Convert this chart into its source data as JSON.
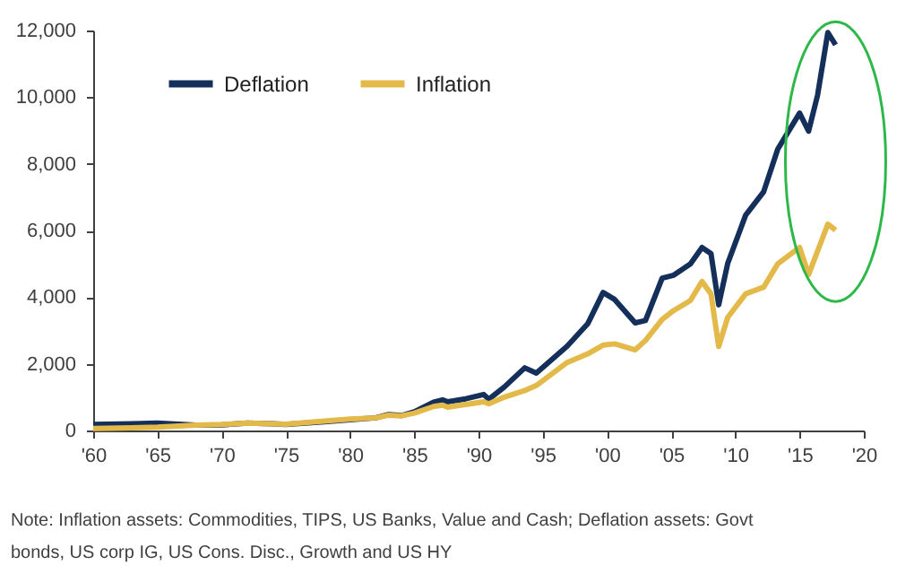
{
  "chart_data": {
    "type": "line",
    "x": [
      1960,
      1963,
      1965,
      1968,
      1970,
      1972,
      1974,
      1975,
      1978,
      1980,
      1982,
      1983,
      1984,
      1985,
      1986.5,
      1987.2,
      1987.6,
      1989,
      1990.4,
      1990.8,
      1992,
      1993.6,
      1994.5,
      1996.9,
      1998.5,
      1999.7,
      2000.6,
      2002.2,
      2003,
      2004.3,
      2005.2,
      2006.5,
      2007.4,
      2008.1,
      2008.7,
      2009.4,
      2010.8,
      2012.2,
      2013.3,
      2015.0,
      2015.7,
      2016.4,
      2017.2,
      2017.8
    ],
    "series": [
      {
        "name": "Deflation",
        "color": "#14305a",
        "values": [
          180,
          200,
          220,
          160,
          170,
          220,
          200,
          180,
          260,
          320,
          380,
          480,
          450,
          560,
          850,
          920,
          860,
          950,
          1080,
          940,
          1300,
          1880,
          1720,
          2530,
          3200,
          4140,
          3930,
          3230,
          3300,
          4570,
          4660,
          5000,
          5490,
          5310,
          3770,
          5010,
          6460,
          7160,
          8440,
          9520,
          8980,
          10060,
          11940,
          11570
        ]
      },
      {
        "name": "Inflation",
        "color": "#e3b94a",
        "values": [
          60,
          80,
          100,
          160,
          180,
          220,
          200,
          190,
          280,
          340,
          380,
          460,
          440,
          520,
          720,
          760,
          700,
          780,
          860,
          800,
          1000,
          1200,
          1350,
          2040,
          2300,
          2560,
          2600,
          2420,
          2700,
          3330,
          3600,
          3900,
          4470,
          4100,
          2520,
          3390,
          4100,
          4300,
          5000,
          5490,
          4680,
          5380,
          6190,
          6010
        ]
      }
    ],
    "xlim": [
      1960,
      2020
    ],
    "xticks": [
      {
        "value": 1960,
        "label": "'60"
      },
      {
        "value": 1965,
        "label": "'65"
      },
      {
        "value": 1970,
        "label": "'70"
      },
      {
        "value": 1975,
        "label": "'75"
      },
      {
        "value": 1980,
        "label": "'80"
      },
      {
        "value": 1985,
        "label": "'85"
      },
      {
        "value": 1990,
        "label": "'90"
      },
      {
        "value": 1995,
        "label": "'95"
      },
      {
        "value": 2000,
        "label": "'00"
      },
      {
        "value": 2005,
        "label": "'05"
      },
      {
        "value": 2010,
        "label": "'10"
      },
      {
        "value": 2015,
        "label": "'15"
      },
      {
        "value": 2020,
        "label": "'20"
      }
    ],
    "ylim": [
      0,
      12000
    ],
    "yticks": [
      {
        "value": 0,
        "label": "0"
      },
      {
        "value": 2000,
        "label": "2,000"
      },
      {
        "value": 4000,
        "label": "4,000"
      },
      {
        "value": 6000,
        "label": "6,000"
      },
      {
        "value": 8000,
        "label": "8,000"
      },
      {
        "value": 10000,
        "label": "10,000"
      },
      {
        "value": 12000,
        "label": "12,000"
      }
    ],
    "legend": "top left",
    "grid": false,
    "annotations": [
      "Note: Inflation assets: Commodities, TIPS, US Banks, Value and Cash; Deflation assets: Govt bonds, US corp IG, US Cons. Disc., Growth and US HY"
    ]
  }
}
